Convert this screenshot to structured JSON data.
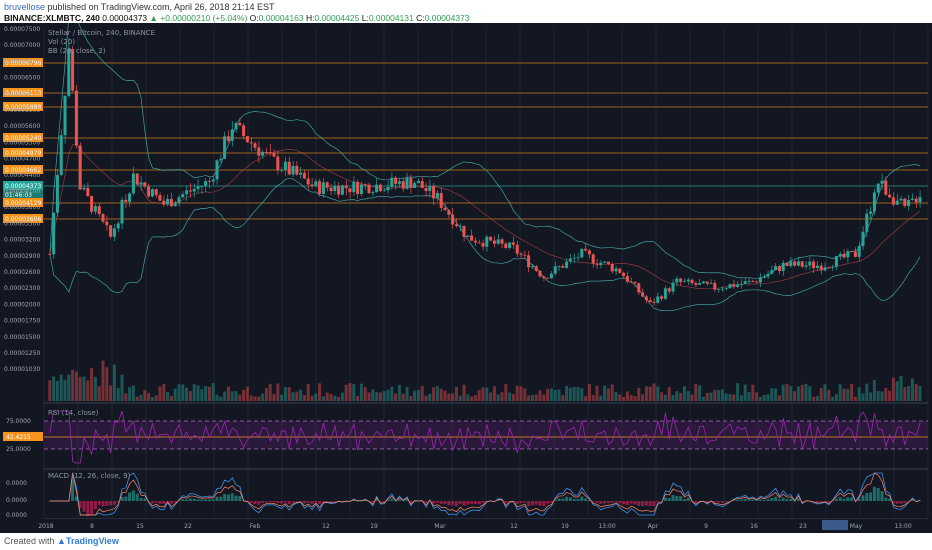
{
  "header": {
    "author": "bruvellose",
    "published": "published on TradingView.com, April 26, 2018 21:14 EST",
    "symbol": "BINANCE:XLMBTC, 240",
    "last": "0.00004373",
    "change": "▲ +0.00000210 (+5.04%)",
    "o_label": "O:",
    "o_value": "0.00004163",
    "h_label": "H:",
    "h_value": "0.00004425",
    "l_label": "L:",
    "l_value": "0.00004131",
    "c_label": "C:",
    "c_value": "0.00004373"
  },
  "chart": {
    "title": "Stellar / Bitcoin, 240, BINANCE",
    "vol_label": "Vol (20)",
    "bb_label": "BB (20, close, 2)",
    "rsi_label": "RSI (14, close)",
    "macd_label": "MACD (12, 26, close, 9)",
    "price_labels": [
      "0.00007500",
      "0.00007000",
      "0.00006800",
      "0.00006500",
      "0.00006200",
      "0.00005900",
      "0.00005600",
      "0.00005300",
      "0.00004700",
      "0.00004400",
      "0.00004100",
      "0.00003800",
      "0.00003500",
      "0.00003200",
      "0.00002900",
      "0.00002600",
      "0.00002300",
      "0.00002000",
      "0.00001750",
      "0.00001500",
      "0.00001250",
      "0.00001030"
    ],
    "level_tags": [
      "0.00006796",
      "0.00006113",
      "0.00005888",
      "0.00005240",
      "0.00004979",
      "0.00004662",
      "0.00004373",
      "01:46:03",
      "0.00004129",
      "0.00003606"
    ],
    "rsi_axis": [
      "75.0000",
      "42.4215",
      "25.0000"
    ],
    "macd_axis": [
      "0.0000",
      "0.0000",
      "0.0000"
    ],
    "x_labels": [
      "2018",
      "8",
      "15",
      "22",
      "Feb",
      "12",
      "19",
      "Mar",
      "12",
      "19",
      "13:00",
      "Apr",
      "9",
      "16",
      "23",
      "May",
      "13:00"
    ],
    "colors": {
      "bg": "#131722",
      "up": "#26a69a",
      "down": "#ef5350",
      "level": "#f7931a",
      "rsi": "#9c27b0",
      "bb": "#4fc3c3"
    }
  },
  "footer": {
    "created": "Created with",
    "brand": "TradingView"
  }
}
